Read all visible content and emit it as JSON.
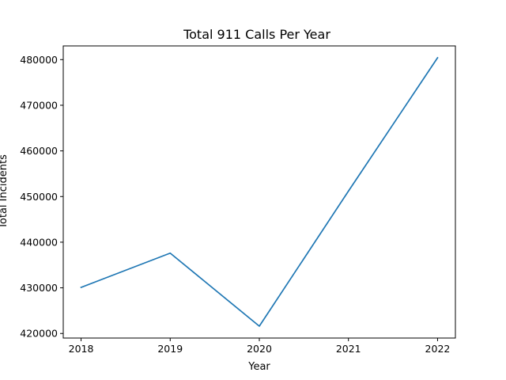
{
  "chart_data": {
    "type": "line",
    "title": "Total 911 Calls Per Year",
    "xlabel": "Year",
    "ylabel": "Total Incidents",
    "x": [
      2018,
      2019,
      2020,
      2021,
      2022
    ],
    "xticks": [
      "2018",
      "2019",
      "2020",
      "2021",
      "2022"
    ],
    "yticks": [
      "420000",
      "430000",
      "440000",
      "450000",
      "460000",
      "470000",
      "480000"
    ],
    "ytick_values": [
      420000,
      430000,
      440000,
      450000,
      460000,
      470000,
      480000
    ],
    "xlim": [
      2017.8,
      2022.2
    ],
    "ylim": [
      419000,
      483000
    ],
    "series": [
      {
        "values": [
          430100,
          437600,
          421600,
          451200,
          480400
        ],
        "color": "#1f77b4"
      }
    ],
    "grid": false,
    "legend": "none"
  }
}
